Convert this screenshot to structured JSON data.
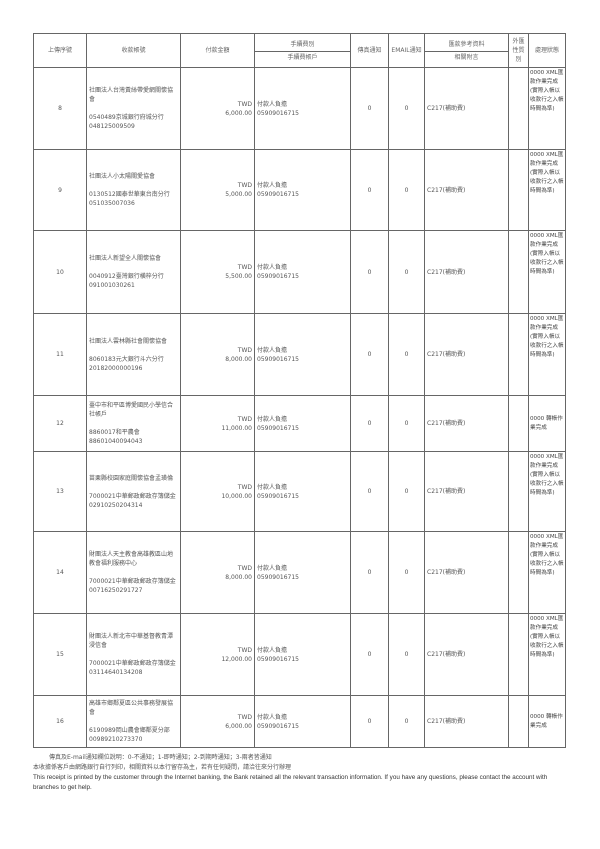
{
  "header": {
    "seq": "上傳序號",
    "payee_account": "收款帳號",
    "amount": "付款金額",
    "fee_type": "手續費別",
    "fee_account": "手續費帳戶",
    "fax_notice": "傳真通知",
    "email_notice": "EMAIL通知",
    "remittance_ref": "匯款參考資料",
    "attachment": "相關附言",
    "foreign_party": "外匯性質別",
    "status": "處理狀態"
  },
  "rows": [
    {
      "seq": "8",
      "payee_name": "社團法人台灣黃絲帶愛網關懷協會",
      "bank": "0540489京城銀行府城分行",
      "account": "048125009509",
      "currency": "TWD",
      "amount": "6,000.00",
      "fee_type": "付款人負擔",
      "fee_account": "05909016715",
      "fax": "0",
      "email": "0",
      "ref": "C217(補助費)",
      "foreign": "",
      "status": "0000 XML匯款作業完成(實際入帳以收款行之入帳時間為準)"
    },
    {
      "seq": "9",
      "payee_name": "社團法人小太陽關愛協會",
      "bank": "0130512國泰世華東台南分行",
      "account": "051035007036",
      "currency": "TWD",
      "amount": "5,000.00",
      "fee_type": "付款人負擔",
      "fee_account": "05909016715",
      "fax": "0",
      "email": "0",
      "ref": "C217(補助費)",
      "foreign": "",
      "status": "0000 XML匯款作業完成(實際入帳以收款行之入帳時間為準)"
    },
    {
      "seq": "10",
      "payee_name": "社團法人新望全人關懷協會",
      "bank": "0040912臺灣銀行横梓分行",
      "account": "091001030261",
      "currency": "TWD",
      "amount": "5,500.00",
      "fee_type": "付款人負擔",
      "fee_account": "05909016715",
      "fax": "0",
      "email": "0",
      "ref": "C217(補助費)",
      "foreign": "",
      "status": "0000 XML匯款作業完成(實際入帳以收款行之入帳時間為準)"
    },
    {
      "seq": "11",
      "payee_name": "社團法人雲林縣社會關懷協會",
      "bank": "8060183元大銀行斗六分行",
      "account": "20182000000196",
      "currency": "TWD",
      "amount": "8,000.00",
      "fee_type": "付款人負擔",
      "fee_account": "05909016715",
      "fax": "0",
      "email": "0",
      "ref": "C217(補助費)",
      "foreign": "",
      "status": "0000 XML匯款作業完成(實際入帳以收款行之入帳時間為準)"
    },
    {
      "seq": "12",
      "payee_name": "臺中市和平區博愛國民小學信合社帳戶",
      "bank": "8860017和平農會",
      "account": "88601040094043",
      "currency": "TWD",
      "amount": "11,000.00",
      "fee_type": "付款人負擔",
      "fee_account": "05909016715",
      "fax": "0",
      "email": "0",
      "ref": "C217(補助費)",
      "foreign": "",
      "status": "0000 轉帳作業完成"
    },
    {
      "seq": "13",
      "payee_name": "苗栗縣校園家庭關懷協會孟璜倫",
      "bank": "7000021中華郵政郵政存簿儲金",
      "account": "02910250204314",
      "currency": "TWD",
      "amount": "10,000.00",
      "fee_type": "付款人負擔",
      "fee_account": "05909016715",
      "fax": "0",
      "email": "0",
      "ref": "C217(補助費)",
      "foreign": "",
      "status": "0000 XML匯款作業完成(實際入帳以收款行之入帳時間為準)"
    },
    {
      "seq": "14",
      "payee_name": "財團法人天主教會高雄教區山地教會福利服務中心",
      "bank": "7000021中華郵政郵政存簿儲金",
      "account": "00716250291727",
      "currency": "TWD",
      "amount": "8,000.00",
      "fee_type": "付款人負擔",
      "fee_account": "05909016715",
      "fax": "0",
      "email": "0",
      "ref": "C217(補助費)",
      "foreign": "",
      "status": "0000 XML匯款作業完成(實際入帳以收款行之入帳時間為準)"
    },
    {
      "seq": "15",
      "payee_name": "財團法人新北市中華基督教青潭浸信會",
      "bank": "7000021中華郵政郵政存簿儲金",
      "account": "03114640134208",
      "currency": "TWD",
      "amount": "12,000.00",
      "fee_type": "付款人負擔",
      "fee_account": "05909016715",
      "fax": "0",
      "email": "0",
      "ref": "C217(補助費)",
      "foreign": "",
      "status": "0000 XML匯款作業完成(實際入帳以收款行之入帳時間為準)"
    },
    {
      "seq": "16",
      "payee_name": "高雄市鄉鄰夏區公共事務發展協會",
      "bank": "6190989岡山農會鄉鄰夏分部",
      "account": "00989210273370",
      "currency": "TWD",
      "amount": "6,000.00",
      "fee_type": "付款人負擔",
      "fee_account": "05909016715",
      "fax": "0",
      "email": "0",
      "ref": "C217(補助費)",
      "foreign": "",
      "status": "0000 轉帳作業完成"
    }
  ],
  "notes": {
    "notice_legend": "傳真及E-mail通知欄位說明：0-不通知；1-即時通知；2-到期時通知；3-兩者皆通知",
    "disclaimer_zh": "本收據係客戶由網路銀行自行列印，相關資料以本行留存為主，若有任何疑問，請洽往來分行辦理",
    "disclaimer_en": "This receipt is printed by the customer through the Internet banking, the Bank retained all the relevant transaction information. If you have any questions, please contact the account with branches to get help."
  }
}
